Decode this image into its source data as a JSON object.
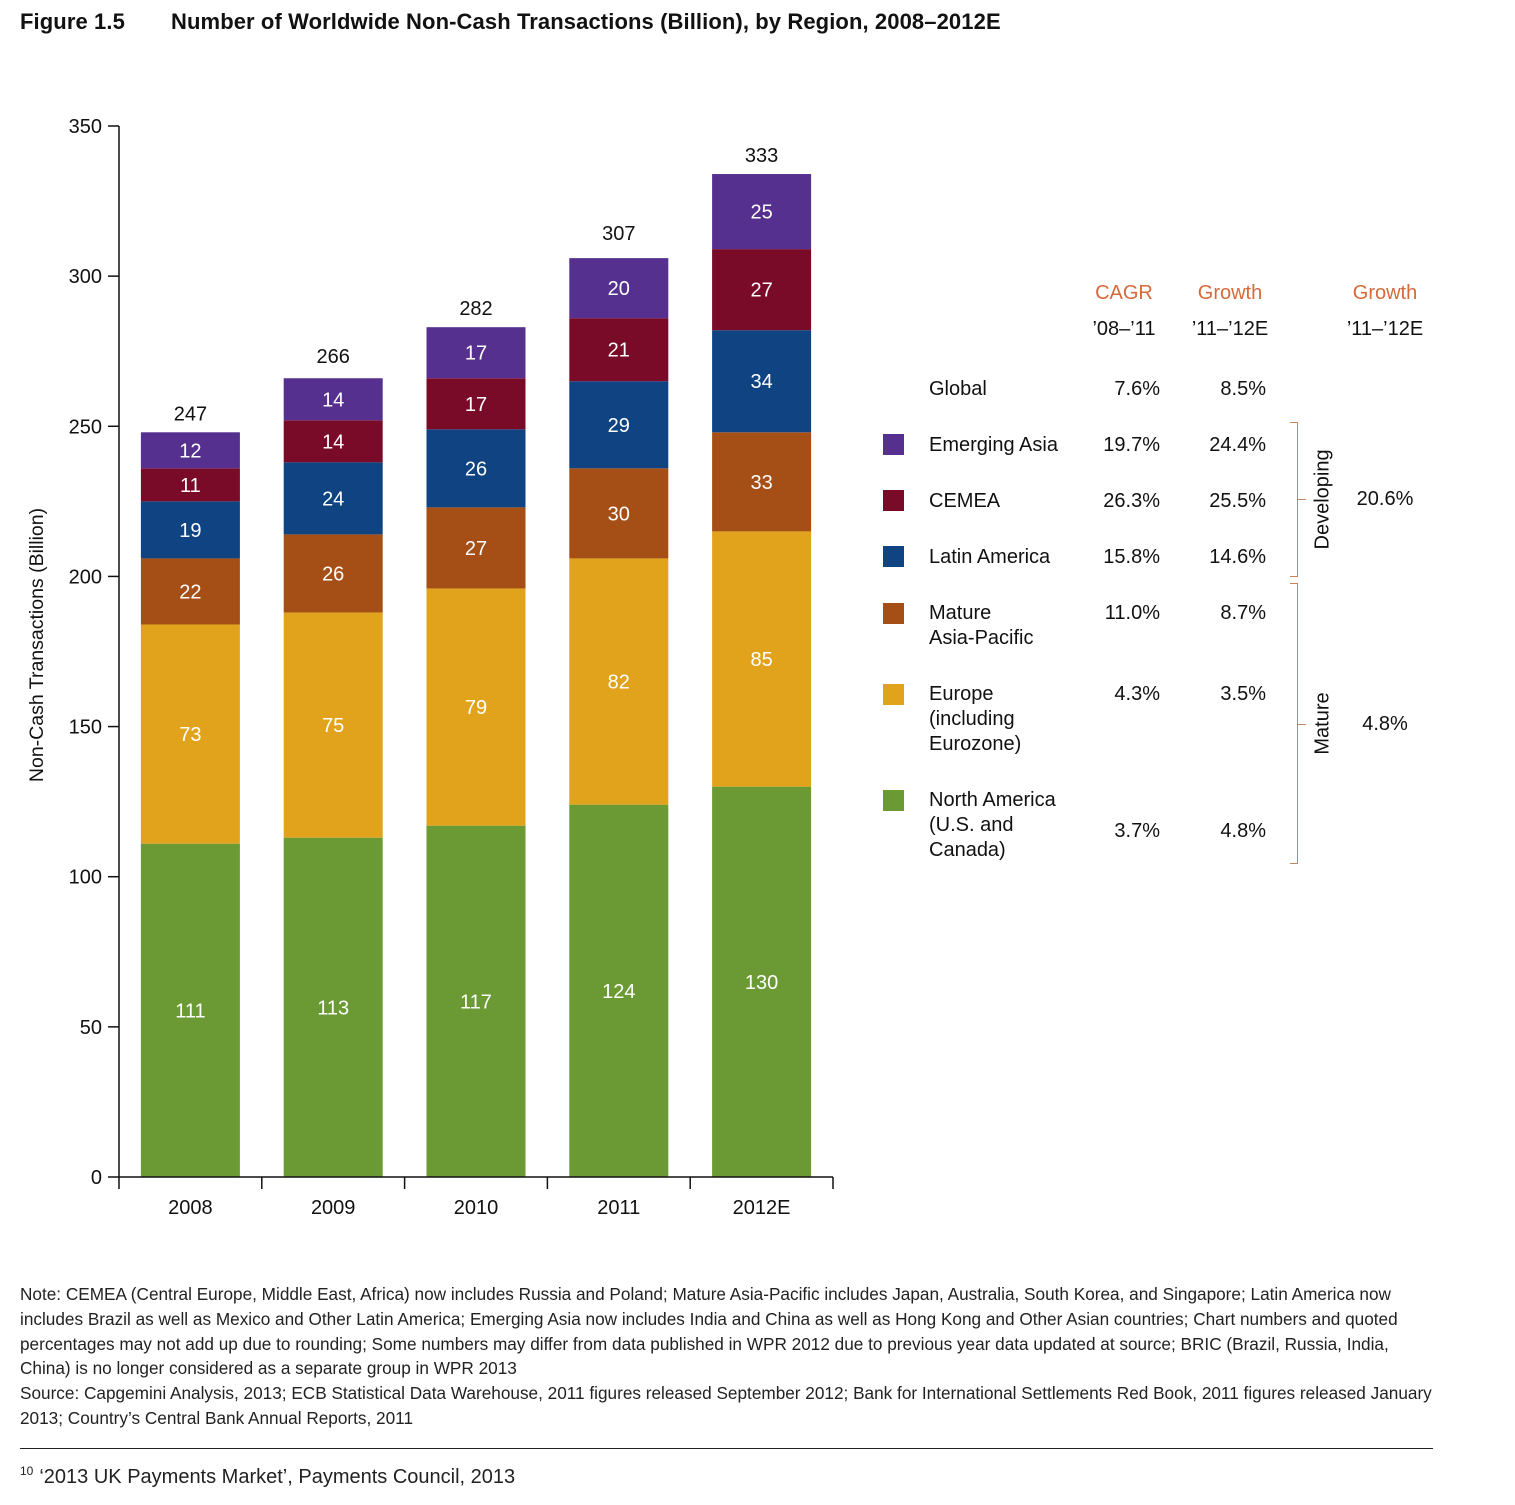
{
  "figure": {
    "number": "Figure 1.5",
    "title": "Number of Worldwide Non-Cash Transactions (Billion), by Region, 2008–2012E"
  },
  "chart_data": {
    "type": "bar",
    "stacked": true,
    "title": "Number of Worldwide Non-Cash Transactions (Billion), by Region, 2008–2012E",
    "xlabel": "",
    "ylabel": "Non-Cash Transactions (Billion)",
    "ylim": [
      0,
      350
    ],
    "yticks": [
      0,
      50,
      100,
      150,
      200,
      250,
      300,
      350
    ],
    "grid": false,
    "categories": [
      "2008",
      "2009",
      "2010",
      "2011",
      "2012E"
    ],
    "totals": [
      247,
      266,
      282,
      307,
      333
    ],
    "series": [
      {
        "name": "North America (U.S. and Canada)",
        "color": "#6b9a35",
        "values": [
          111,
          113,
          117,
          124,
          130
        ]
      },
      {
        "name": "Europe (including Eurozone)",
        "color": "#e2a31c",
        "values": [
          73,
          75,
          79,
          82,
          85
        ]
      },
      {
        "name": "Mature Asia-Pacific",
        "color": "#a54f16",
        "values": [
          22,
          26,
          27,
          30,
          33
        ]
      },
      {
        "name": "Latin America",
        "color": "#0f4382",
        "values": [
          19,
          24,
          26,
          29,
          34
        ]
      },
      {
        "name": "CEMEA",
        "color": "#7a0b28",
        "values": [
          11,
          14,
          17,
          21,
          27
        ]
      },
      {
        "name": "Emerging Asia",
        "color": "#55308f",
        "values": [
          12,
          14,
          17,
          20,
          25
        ]
      }
    ],
    "legend_placement": "right"
  },
  "table": {
    "headers": {
      "cagr": "CAGR",
      "cagr_period": "’08–’11",
      "growth": "Growth",
      "growth_period": "’11–’12E",
      "group_growth": "Growth",
      "group_growth_period": "’11–’12E"
    },
    "global": {
      "label": "Global",
      "cagr": "7.6%",
      "growth": "8.5%"
    },
    "rows": [
      {
        "label": "Emerging Asia",
        "color": "#55308f",
        "cagr": "19.7%",
        "growth": "24.4%"
      },
      {
        "label": "CEMEA",
        "color": "#7a0b28",
        "cagr": "26.3%",
        "growth": "25.5%"
      },
      {
        "label": "Latin America",
        "color": "#0f4382",
        "cagr": "15.8%",
        "growth": "14.6%"
      },
      {
        "label": "Mature\nAsia-Pacific",
        "color": "#a54f16",
        "cagr": "11.0%",
        "growth": "8.7%"
      },
      {
        "label": "Europe\n(including\nEurozone)",
        "color": "#e2a31c",
        "cagr": "4.3%",
        "growth": "3.5%"
      },
      {
        "label": "North America\n(U.S. and\nCanada)",
        "color": "#6b9a35",
        "cagr": "3.7%",
        "growth": "4.8%"
      }
    ],
    "groups": [
      {
        "label": "Developing",
        "growth": "20.6%"
      },
      {
        "label": "Mature",
        "growth": "4.8%"
      }
    ],
    "accent_color": "#d66a3a"
  },
  "notes": {
    "note": "Note: CEMEA (Central Europe, Middle East, Africa) now includes Russia and Poland; Mature Asia-Pacific includes Japan, Australia, South Korea, and Singapore; Latin America now includes Brazil as well as Mexico and Other Latin America; Emerging Asia now includes India and China as well as Hong Kong and Other Asian countries; Chart numbers and quoted percentages may not add up due to rounding; Some numbers may differ from data published in WPR 2012 due to previous year data updated at source; BRIC (Brazil, Russia, India, China) is no longer considered as a separate group in WPR 2013",
    "source": "Source: Capgemini Analysis, 2013; ECB Statistical Data Warehouse, 2011 figures released September 2012; Bank for International Settlements Red Book, 2011 figures released January 2013; Country’s Central Bank Annual Reports, 2011"
  },
  "footnote": {
    "marker": "10",
    "text": "‘2013 UK Payments Market’, Payments Council, 2013"
  }
}
